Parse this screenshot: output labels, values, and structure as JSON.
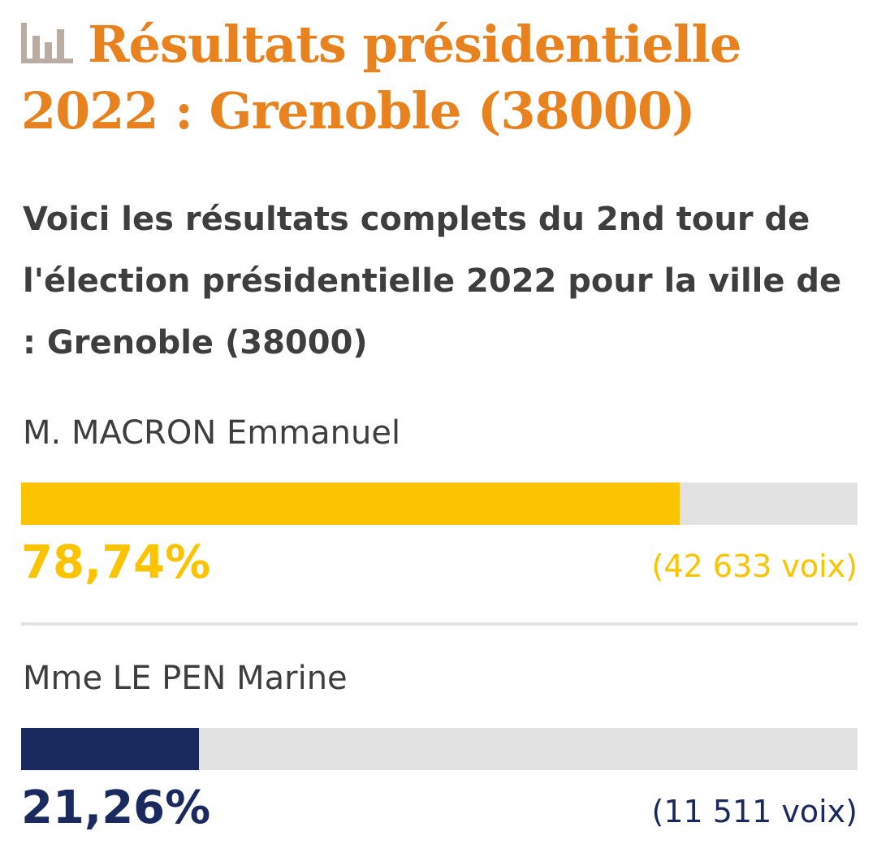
{
  "header": {
    "title": "Résultats présidentielle 2022 : Grenoble (38000)",
    "icon": "bar-chart-icon",
    "subtitle": "Voici les résultats complets du 2nd tour de l'élection présidentielle 2022 pour la ville de : Grenoble (38000)"
  },
  "colors": {
    "title": "#e8821e",
    "icon": "#b9aca3",
    "text": "#3e3e3e",
    "track": "#e2e2e2"
  },
  "chart_data": {
    "type": "bar",
    "orientation": "horizontal",
    "categories": [
      "M. MACRON Emmanuel",
      "Mme LE PEN Marine"
    ],
    "values": [
      78.74,
      21.26
    ],
    "value_labels": [
      "78,74%",
      "21,26%"
    ],
    "votes": [
      42633,
      11511
    ],
    "vote_labels": [
      "(42 633 voix)",
      "(11 511 voix)"
    ],
    "colors": [
      "#fbc300",
      "#1a2a5e"
    ],
    "xlim": [
      0,
      100
    ],
    "unit": "%"
  }
}
